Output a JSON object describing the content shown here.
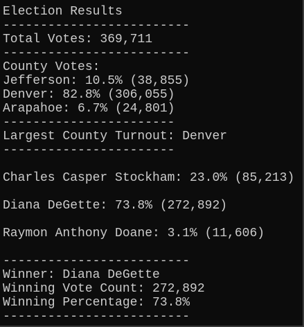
{
  "lines": [
    "Election Results",
    "-------------------------",
    "Total Votes: 369,711",
    "-------------------------",
    "County Votes:",
    "Jefferson: 10.5% (38,855)",
    "Denver: 82.8% (306,055)",
    "Arapahoe: 6.7% (24,801)",
    "-----------------------",
    "Largest County Turnout: Denver",
    "-----------------------",
    "Charles Casper Stockham: 23.0% (85,213)",
    "Diana DeGette: 73.8% (272,892)",
    "Raymon Anthony Doane: 3.1% (11,606)",
    "-------------------------",
    "Winner: Diana DeGette",
    "Winning Vote Count: 272,892",
    "Winning Percentage: 73.8%",
    "-------------------------"
  ]
}
